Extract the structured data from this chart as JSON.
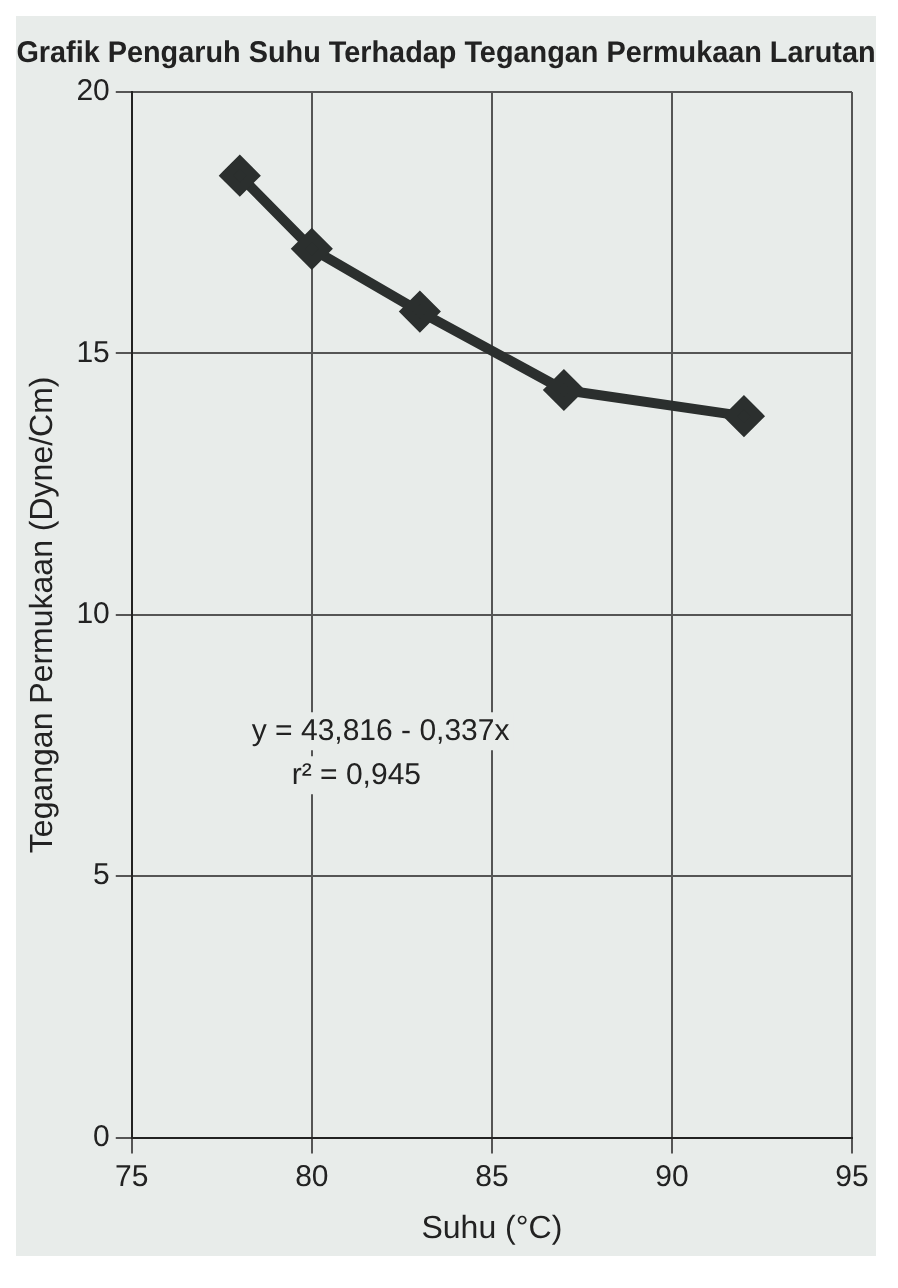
{
  "chart_data": {
    "type": "line",
    "title": "Grafik Pengaruh Suhu Terhadap Tegangan Permukaan Larutan",
    "xlabel": "Suhu (°C)",
    "ylabel": "Tegangan Permukaan (Dyne/Cm)",
    "x": [
      78,
      80,
      83,
      87,
      92
    ],
    "series": [
      {
        "color": "#2b2f2e",
        "values": [
          18.4,
          17.0,
          15.8,
          14.3,
          13.8
        ]
      }
    ],
    "xlim": [
      75,
      95
    ],
    "xticks": [
      75,
      80,
      85,
      90,
      95
    ],
    "ylim": [
      0,
      20
    ],
    "yticks": [
      0,
      5,
      10,
      15,
      20
    ],
    "annotations": [
      "y = 43,816 - 0,337x",
      "r² = 0,945"
    ],
    "grid": true,
    "legend": false,
    "marker": "diamond",
    "line_style": "solid"
  }
}
